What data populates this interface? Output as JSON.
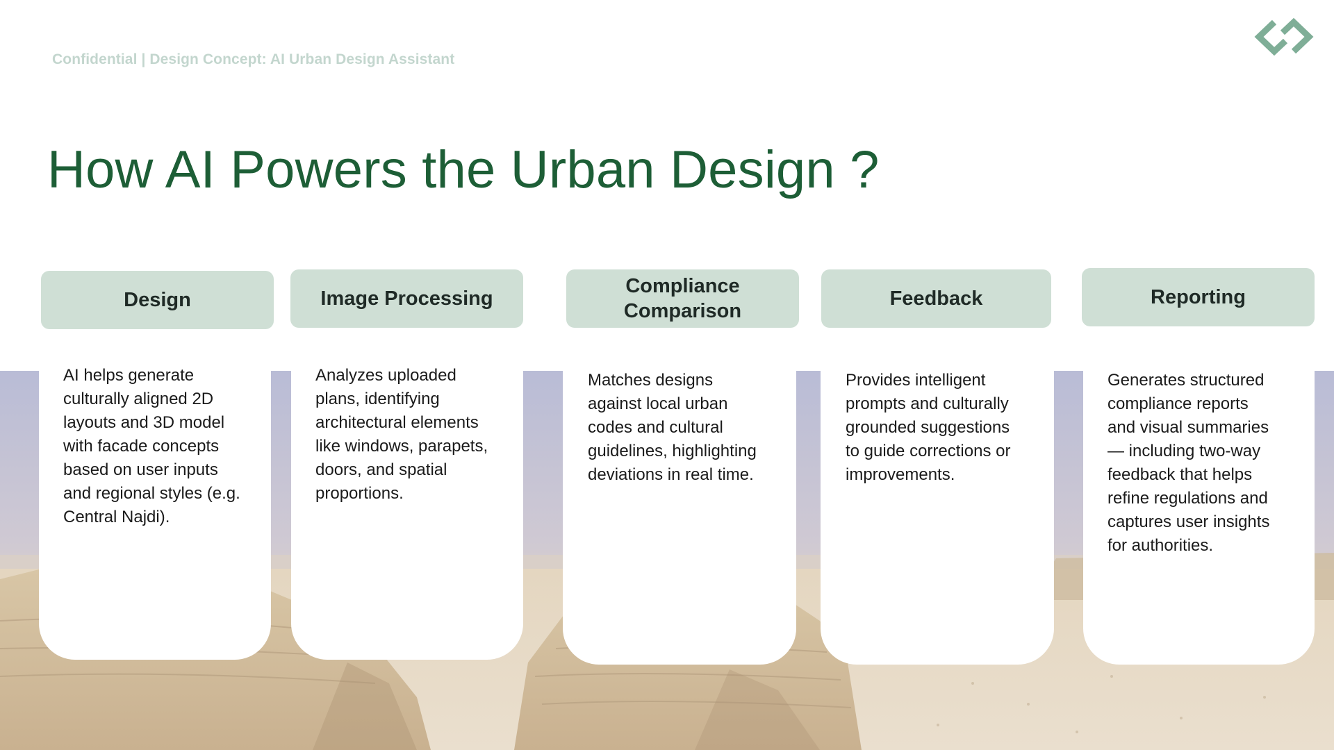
{
  "header": {
    "confidential_label": "Confidential | Design Concept: AI Urban Design Assistant",
    "logo_icon": "chain-link-diamond-icon"
  },
  "title": "How AI Powers the Urban Design ?",
  "colors": {
    "title": "#1d5e36",
    "header_fill": "#cfdfd5",
    "logo": "#7fae97",
    "confidential_text": "#c3d6ce"
  },
  "cards": [
    {
      "title": "Design",
      "body": "AI helps generate\nculturally aligned 2D\nlayouts and 3D model\nwith facade concepts\nbased on user inputs\nand regional styles (e.g.\nCentral Najdi)."
    },
    {
      "title": "Image Processing",
      "body": "Analyzes uploaded\nplans, identifying\narchitectural elements\nlike windows, parapets,\ndoors, and spatial\nproportions."
    },
    {
      "title": "Compliance\nComparison",
      "body": "Matches designs\nagainst local urban\ncodes and cultural\nguidelines, highlighting\ndeviations in real time."
    },
    {
      "title": "Feedback",
      "body": "Provides intelligent\nprompts and culturally\ngrounded suggestions\nto guide corrections or\nimprovements."
    },
    {
      "title": "Reporting",
      "body": "Generates structured\ncompliance reports\nand visual summaries\n— including two-way\nfeedback that helps\nrefine regulations and\ncaptures user insights\nfor authorities."
    }
  ]
}
